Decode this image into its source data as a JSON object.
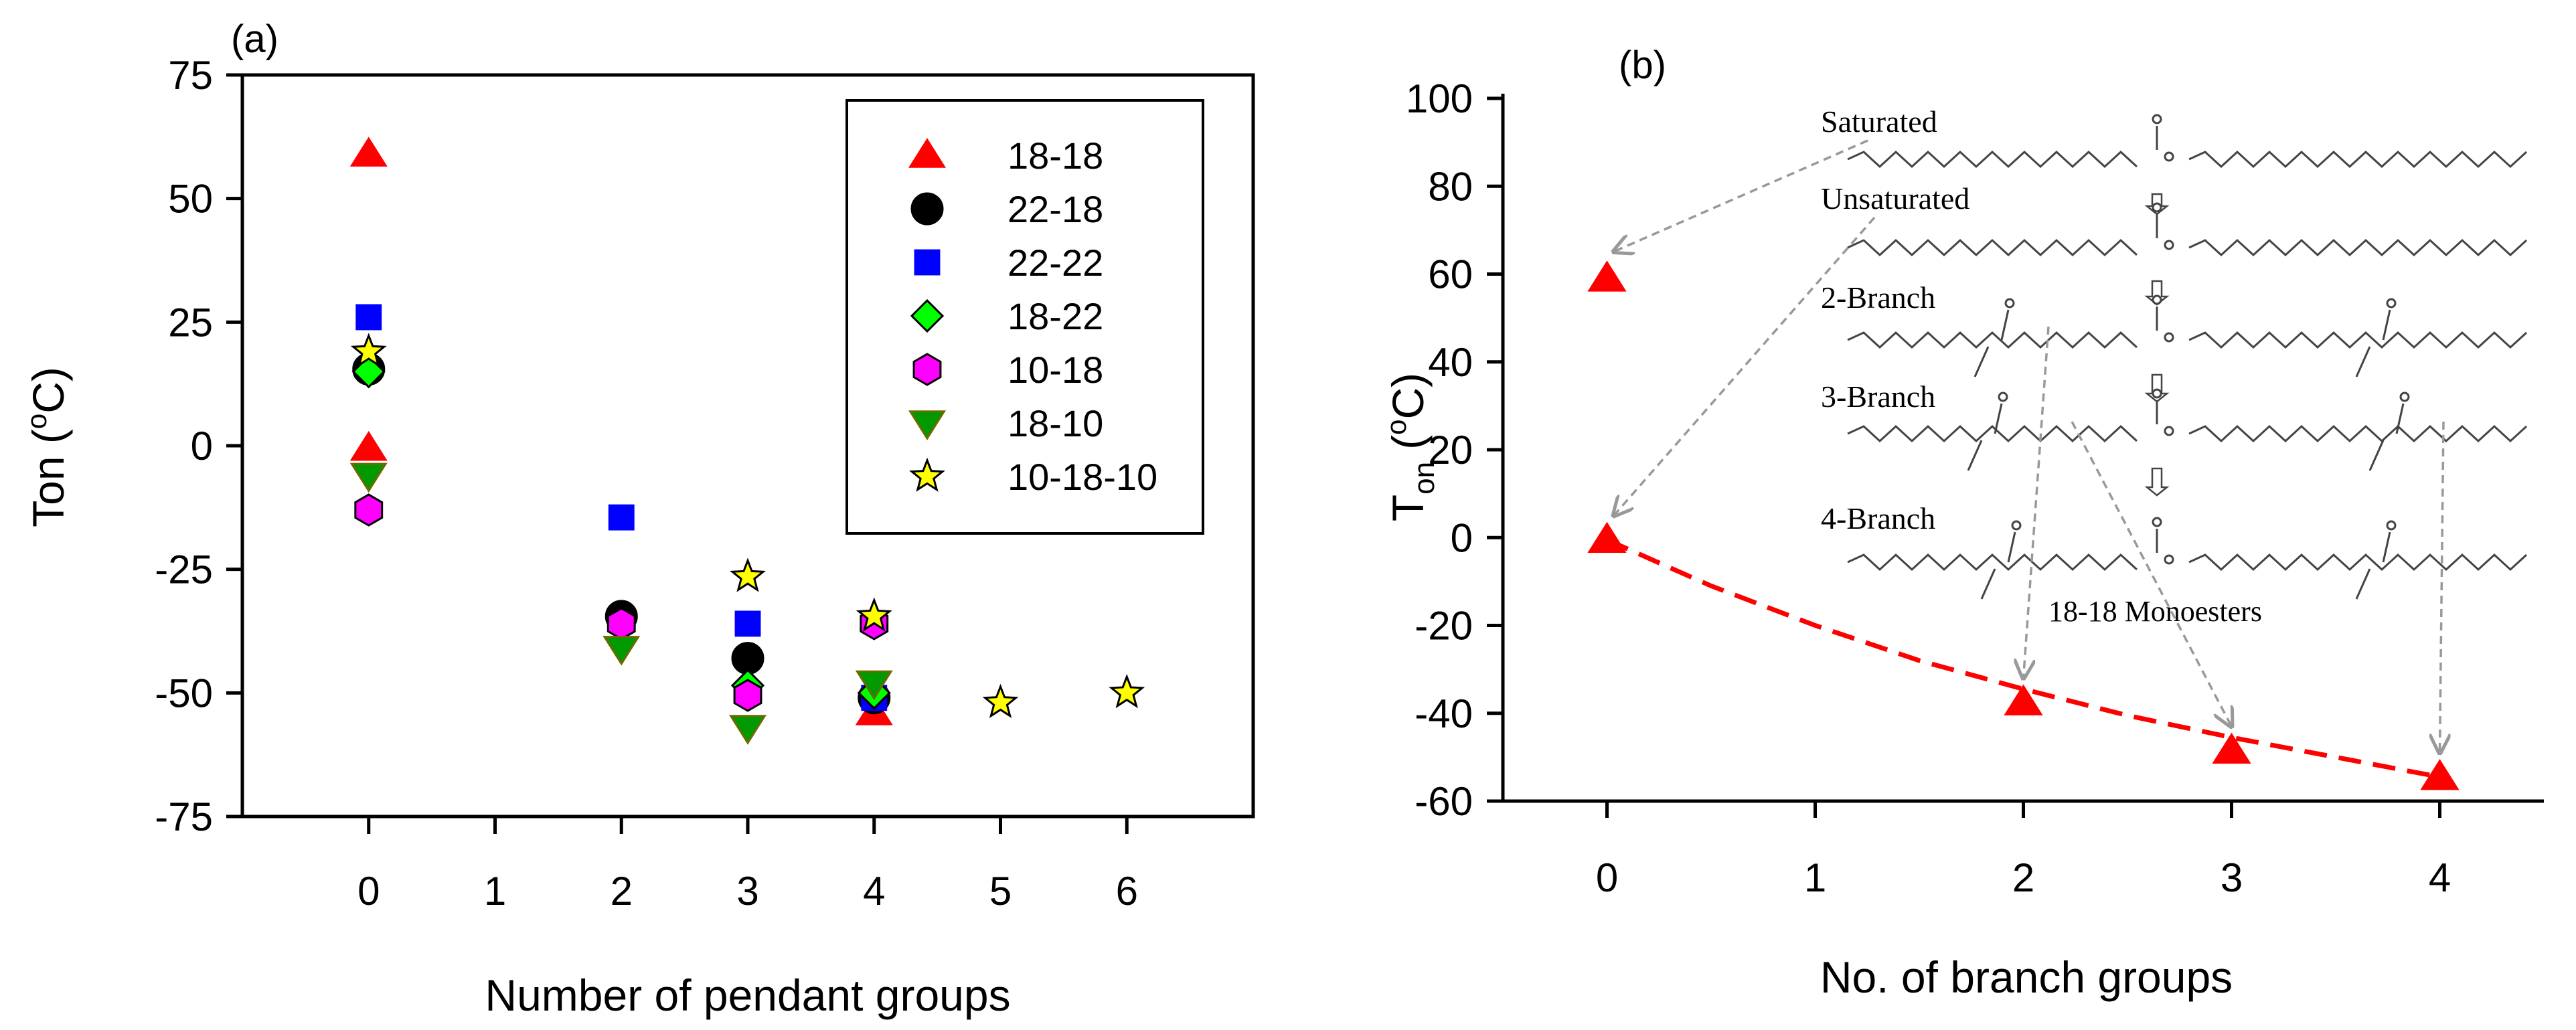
{
  "chart_data": [
    {
      "type": "scatter",
      "panel_label": "(a)",
      "xlabel": "Number of pendant groups",
      "ylabel": "Ton (",
      "ylabel_sup": "o",
      "ylabel_tail": "C)",
      "xlim": [
        -1,
        7
      ],
      "ylim": [
        -75,
        75
      ],
      "xticks": [
        "0",
        "1",
        "2",
        "3",
        "4",
        "5",
        "6"
      ],
      "yticks": [
        "75",
        "50",
        "25",
        "0",
        "-25",
        "-50",
        "-75"
      ],
      "series": [
        {
          "name": "18-18",
          "marker": "triangle-up",
          "color": "#ff0000",
          "points": [
            [
              0,
              59
            ],
            [
              0,
              -0.5
            ],
            [
              4,
              -54
            ]
          ]
        },
        {
          "name": "22-18",
          "marker": "circle",
          "color": "#000000",
          "points": [
            [
              0,
              15.5
            ],
            [
              2,
              -34.5
            ],
            [
              3,
              -43
            ],
            [
              4,
              -51
            ]
          ]
        },
        {
          "name": "22-22",
          "marker": "square",
          "color": "#0000ff",
          "points": [
            [
              0,
              26
            ],
            [
              2,
              -14.5
            ],
            [
              3,
              -36
            ],
            [
              4,
              -51
            ]
          ]
        },
        {
          "name": "18-22",
          "marker": "diamond",
          "color": "#00ff00",
          "points": [
            [
              0,
              15
            ],
            [
              3,
              -48.5
            ],
            [
              4,
              -50
            ]
          ]
        },
        {
          "name": "10-18",
          "marker": "hexagon",
          "color": "#ff00ff",
          "points": [
            [
              0,
              -13
            ],
            [
              2,
              -36
            ],
            [
              3,
              -50.5
            ],
            [
              4,
              -36
            ]
          ]
        },
        {
          "name": "18-10",
          "marker": "triangle-down",
          "color": "#009900",
          "points": [
            [
              0,
              -6
            ],
            [
              2,
              -41
            ],
            [
              3,
              -57
            ],
            [
              4,
              -48
            ]
          ]
        },
        {
          "name": "10-18-10",
          "marker": "star",
          "color": "#ffff00",
          "points": [
            [
              0,
              19
            ],
            [
              3,
              -26.5
            ],
            [
              4,
              -34.5
            ],
            [
              5,
              -52
            ],
            [
              6,
              -50
            ]
          ]
        }
      ]
    },
    {
      "type": "scatter",
      "panel_label": "(b)",
      "xlabel": "No. of branch groups",
      "ylabel_main": "T",
      "ylabel_sub": "on",
      "ylabel_open": "(",
      "ylabel_sup": "o",
      "ylabel_tail": "C)",
      "xlim": [
        -0.5,
        4.5
      ],
      "ylim": [
        -60,
        100
      ],
      "xticks": [
        "0",
        "1",
        "2",
        "3",
        "4"
      ],
      "yticks": [
        "100",
        "80",
        "60",
        "40",
        "20",
        "0",
        "-20",
        "-40",
        "-60"
      ],
      "series": [
        {
          "name": "18-18 Monoesters",
          "marker": "triangle-up",
          "color": "#ff0000",
          "points": [
            [
              0,
              59
            ],
            [
              0,
              -0.5
            ],
            [
              2,
              -37.5
            ],
            [
              3,
              -48.5
            ],
            [
              4,
              -54.5
            ]
          ]
        }
      ],
      "fit_curve": {
        "color": "#ff0000",
        "style": "dashed",
        "x": [
          0,
          0.5,
          1,
          1.5,
          2,
          2.5,
          3,
          3.5,
          4
        ],
        "y": [
          -0.5,
          -11,
          -20,
          -28,
          -34.5,
          -40.5,
          -45.5,
          -50,
          -54.5
        ]
      },
      "annotations": {
        "structure_labels": [
          "Saturated",
          "Unsaturated",
          "2-Branch",
          "3-Branch",
          "4-Branch"
        ],
        "caption": "18-18 Monoesters"
      }
    }
  ]
}
